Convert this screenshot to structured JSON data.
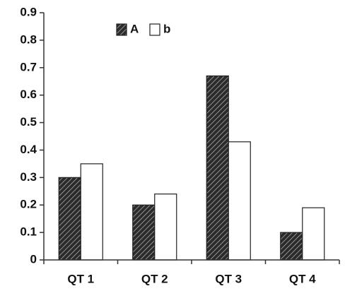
{
  "chart_data": {
    "type": "bar",
    "categories": [
      "QT 1",
      "QT 2",
      "QT 3",
      "QT 4"
    ],
    "series": [
      {
        "name": "A",
        "color": "#2b2b2b",
        "pattern": "hatch",
        "values": [
          0.3,
          0.2,
          0.67,
          0.1
        ]
      },
      {
        "name": "b",
        "color": "#ffffff",
        "values": [
          0.35,
          0.24,
          0.43,
          0.19
        ]
      }
    ],
    "ylim": [
      0,
      0.9
    ],
    "yticks": [
      0,
      0.1,
      0.2,
      0.3,
      0.4,
      0.5,
      0.6,
      0.7,
      0.8,
      0.9
    ],
    "grid": false,
    "legend": "top"
  }
}
